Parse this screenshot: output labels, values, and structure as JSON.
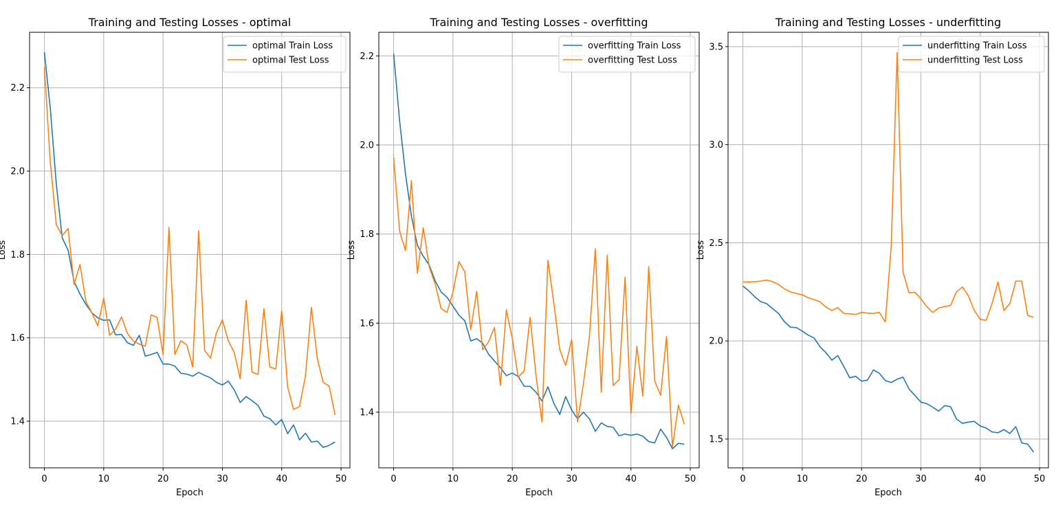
{
  "chart_data": [
    {
      "type": "line",
      "title": "Training and Testing Losses - optimal",
      "xlabel": "Epoch",
      "ylabel": "Loss",
      "xlim": [
        -2.5,
        51.5
      ],
      "ylim": [
        1.288,
        2.333
      ],
      "xticks": [
        0,
        10,
        20,
        30,
        40,
        50
      ],
      "yticks": [
        1.4,
        1.6,
        1.8,
        2.0,
        2.2
      ],
      "ytick_labels": [
        "1.4",
        "1.6",
        "1.8",
        "2.0",
        "2.2"
      ],
      "grid": true,
      "legend": "top-right",
      "x": [
        0,
        1,
        2,
        3,
        4,
        5,
        6,
        7,
        8,
        9,
        10,
        11,
        12,
        13,
        14,
        15,
        16,
        17,
        18,
        19,
        20,
        21,
        22,
        23,
        24,
        25,
        26,
        27,
        28,
        29,
        30,
        31,
        32,
        33,
        34,
        35,
        36,
        37,
        38,
        39,
        40,
        41,
        42,
        43,
        44,
        45,
        46,
        47,
        48,
        49
      ],
      "series": [
        {
          "name": "optimal Train Loss",
          "color": "#1f77b4",
          "values": [
            2.285,
            2.15,
            1.97,
            1.84,
            1.81,
            1.735,
            1.705,
            1.68,
            1.66,
            1.648,
            1.642,
            1.643,
            1.607,
            1.608,
            1.588,
            1.582,
            1.606,
            1.556,
            1.56,
            1.565,
            1.537,
            1.537,
            1.532,
            1.515,
            1.513,
            1.508,
            1.517,
            1.51,
            1.504,
            1.493,
            1.487,
            1.496,
            1.475,
            1.445,
            1.459,
            1.449,
            1.438,
            1.412,
            1.406,
            1.391,
            1.404,
            1.37,
            1.391,
            1.355,
            1.371,
            1.35,
            1.352,
            1.337,
            1.342,
            1.35
          ]
        },
        {
          "name": "optimal Test Loss",
          "color": "#ff7f0e",
          "values": [
            2.25,
            2.02,
            1.872,
            1.845,
            1.862,
            1.728,
            1.776,
            1.687,
            1.66,
            1.629,
            1.695,
            1.606,
            1.621,
            1.65,
            1.61,
            1.592,
            1.585,
            1.58,
            1.655,
            1.649,
            1.56,
            1.865,
            1.56,
            1.593,
            1.583,
            1.53,
            1.857,
            1.57,
            1.551,
            1.612,
            1.643,
            1.593,
            1.565,
            1.502,
            1.69,
            1.518,
            1.512,
            1.67,
            1.53,
            1.525,
            1.665,
            1.482,
            1.428,
            1.435,
            1.508,
            1.673,
            1.55,
            1.493,
            1.484,
            1.415
          ]
        }
      ]
    },
    {
      "type": "line",
      "title": "Training and Testing Losses - overfitting",
      "xlabel": "Epoch",
      "ylabel": "Loss",
      "xlim": [
        -2.5,
        51.5
      ],
      "ylim": [
        1.275,
        2.253
      ],
      "xticks": [
        0,
        10,
        20,
        30,
        40,
        50
      ],
      "yticks": [
        1.4,
        1.6,
        1.8,
        2.0,
        2.2
      ],
      "ytick_labels": [
        "1.4",
        "1.6",
        "1.8",
        "2.0",
        "2.2"
      ],
      "grid": true,
      "legend": "top-right",
      "x": [
        0,
        1,
        2,
        3,
        4,
        5,
        6,
        7,
        8,
        9,
        10,
        11,
        12,
        13,
        14,
        15,
        16,
        17,
        18,
        19,
        20,
        21,
        22,
        23,
        24,
        25,
        26,
        27,
        28,
        29,
        30,
        31,
        32,
        33,
        34,
        35,
        36,
        37,
        38,
        39,
        40,
        41,
        42,
        43,
        44,
        45,
        46,
        47,
        48,
        49
      ],
      "series": [
        {
          "name": "overfitting Train Loss",
          "color": "#1f77b4",
          "values": [
            2.205,
            2.055,
            1.935,
            1.84,
            1.775,
            1.75,
            1.73,
            1.695,
            1.67,
            1.658,
            1.638,
            1.618,
            1.605,
            1.56,
            1.565,
            1.555,
            1.53,
            1.515,
            1.5,
            1.482,
            1.488,
            1.48,
            1.458,
            1.458,
            1.445,
            1.425,
            1.457,
            1.42,
            1.395,
            1.435,
            1.405,
            1.385,
            1.4,
            1.385,
            1.357,
            1.376,
            1.368,
            1.366,
            1.347,
            1.351,
            1.348,
            1.351,
            1.346,
            1.334,
            1.331,
            1.362,
            1.343,
            1.318,
            1.33,
            1.328
          ]
        },
        {
          "name": "overfitting Test Loss",
          "color": "#ff7f0e",
          "values": [
            1.972,
            1.807,
            1.763,
            1.92,
            1.712,
            1.814,
            1.726,
            1.688,
            1.633,
            1.624,
            1.67,
            1.738,
            1.715,
            1.585,
            1.671,
            1.54,
            1.558,
            1.59,
            1.46,
            1.63,
            1.565,
            1.478,
            1.493,
            1.613,
            1.482,
            1.378,
            1.741,
            1.645,
            1.54,
            1.505,
            1.563,
            1.378,
            1.465,
            1.57,
            1.767,
            1.445,
            1.752,
            1.46,
            1.473,
            1.703,
            1.397,
            1.548,
            1.436,
            1.727,
            1.47,
            1.438,
            1.57,
            1.322,
            1.416,
            1.373
          ]
        }
      ]
    },
    {
      "type": "line",
      "title": "Training and Testing Losses - underfitting",
      "xlabel": "Epoch",
      "ylabel": "Loss",
      "xlim": [
        -2.5,
        51.5
      ],
      "ylim": [
        1.353,
        3.573
      ],
      "xticks": [
        0,
        10,
        20,
        30,
        40,
        50
      ],
      "yticks": [
        1.5,
        2.0,
        2.5,
        3.0,
        3.5
      ],
      "ytick_labels": [
        "1.5",
        "2.0",
        "2.5",
        "3.0",
        "3.5"
      ],
      "grid": true,
      "legend": "top-right",
      "x": [
        0,
        1,
        2,
        3,
        4,
        5,
        6,
        7,
        8,
        9,
        10,
        11,
        12,
        13,
        14,
        15,
        16,
        17,
        18,
        19,
        20,
        21,
        22,
        23,
        24,
        25,
        26,
        27,
        28,
        29,
        30,
        31,
        32,
        33,
        34,
        35,
        36,
        37,
        38,
        39,
        40,
        41,
        42,
        43,
        44,
        45,
        46,
        47,
        48,
        49
      ],
      "series": [
        {
          "name": "underfitting Train Loss",
          "color": "#1f77b4",
          "values": [
            2.28,
            2.255,
            2.225,
            2.2,
            2.19,
            2.165,
            2.14,
            2.098,
            2.07,
            2.068,
            2.05,
            2.03,
            2.015,
            1.97,
            1.94,
            1.902,
            1.925,
            1.87,
            1.812,
            1.82,
            1.795,
            1.8,
            1.852,
            1.835,
            1.798,
            1.788,
            1.805,
            1.815,
            1.755,
            1.722,
            1.688,
            1.68,
            1.662,
            1.642,
            1.67,
            1.665,
            1.602,
            1.58,
            1.586,
            1.59,
            1.566,
            1.556,
            1.536,
            1.532,
            1.548,
            1.528,
            1.563,
            1.48,
            1.474,
            1.433
          ]
        },
        {
          "name": "underfitting Test Loss",
          "color": "#ff7f0e",
          "values": [
            2.3,
            2.3,
            2.302,
            2.305,
            2.31,
            2.302,
            2.288,
            2.265,
            2.25,
            2.242,
            2.235,
            2.22,
            2.21,
            2.2,
            2.172,
            2.155,
            2.17,
            2.14,
            2.138,
            2.135,
            2.145,
            2.142,
            2.14,
            2.145,
            2.097,
            2.48,
            3.47,
            2.35,
            2.245,
            2.248,
            2.215,
            2.175,
            2.145,
            2.168,
            2.175,
            2.18,
            2.25,
            2.275,
            2.23,
            2.155,
            2.11,
            2.105,
            2.19,
            2.3,
            2.155,
            2.19,
            2.305,
            2.305,
            2.13,
            2.12
          ]
        }
      ]
    }
  ]
}
